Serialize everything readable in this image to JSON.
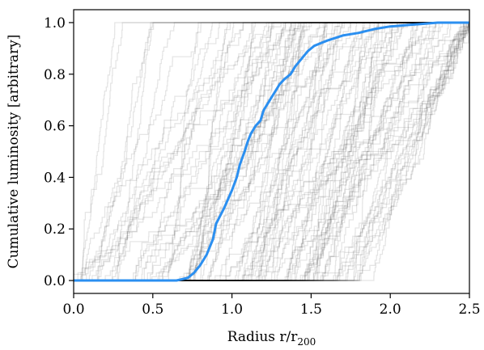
{
  "chart_data": {
    "type": "line",
    "xlabel": "Radius r/r",
    "xlabel_sub": "200",
    "ylabel": "Cumulative luminosity [arbitrary]",
    "xlim": [
      0.0,
      2.5
    ],
    "ylim": [
      -0.05,
      1.05
    ],
    "xticks": [
      0.0,
      0.5,
      1.0,
      1.5,
      2.0,
      2.5
    ],
    "xtick_labels": [
      "0.0",
      "0.5",
      "1.0",
      "1.5",
      "2.0",
      "2.5"
    ],
    "yticks": [
      0.0,
      0.2,
      0.4,
      0.6,
      0.8,
      1.0
    ],
    "ytick_labels": [
      "0.0",
      "0.2",
      "0.4",
      "0.6",
      "0.8",
      "1.0"
    ],
    "grid": false,
    "background_colors": {
      "line": "#000000",
      "opacity": 0.1,
      "count": 110
    },
    "highlight_color": "#2b8ff0",
    "highlight_series": {
      "x": [
        0.0,
        0.65,
        0.72,
        0.76,
        0.8,
        0.84,
        0.88,
        0.9,
        0.95,
        1.0,
        1.03,
        1.05,
        1.08,
        1.1,
        1.12,
        1.15,
        1.18,
        1.2,
        1.24,
        1.27,
        1.3,
        1.33,
        1.37,
        1.4,
        1.44,
        1.48,
        1.52,
        1.56,
        1.6,
        1.7,
        1.8,
        1.9,
        2.0,
        2.1,
        2.2,
        2.3,
        2.4,
        2.5
      ],
      "y": [
        0.0,
        0.0,
        0.01,
        0.03,
        0.06,
        0.1,
        0.16,
        0.22,
        0.28,
        0.35,
        0.4,
        0.45,
        0.5,
        0.54,
        0.57,
        0.6,
        0.62,
        0.66,
        0.7,
        0.73,
        0.76,
        0.78,
        0.8,
        0.83,
        0.86,
        0.89,
        0.91,
        0.92,
        0.93,
        0.95,
        0.96,
        0.975,
        0.985,
        0.99,
        0.995,
        1.0,
        1.0,
        1.0
      ]
    }
  }
}
